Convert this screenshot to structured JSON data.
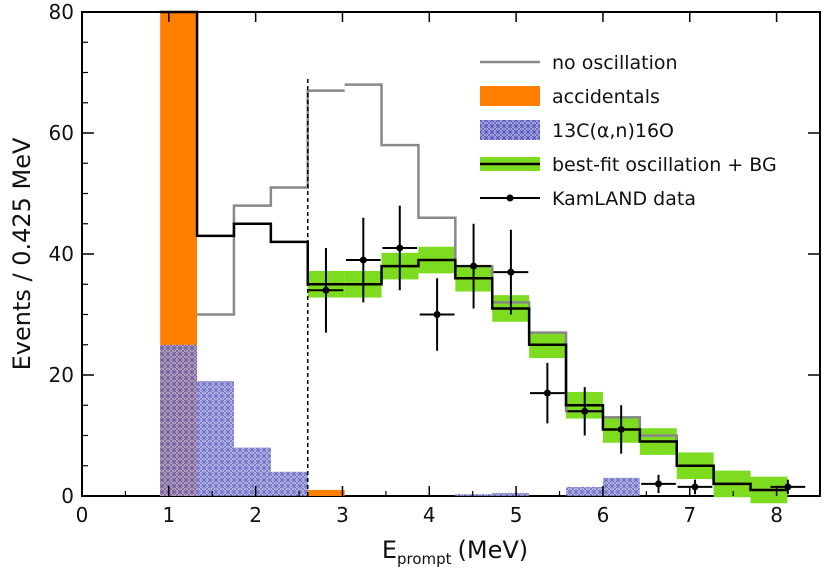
{
  "chart_data": {
    "type": "histogram",
    "xlabel": "E",
    "xlabel_sub": "prompt",
    "xlabel_unit": "(MeV)",
    "ylabel": "Events / 0.425 MeV",
    "xlim": [
      0,
      8.5
    ],
    "ylim": [
      0,
      80
    ],
    "xticks": [
      "0",
      "1",
      "2",
      "3",
      "4",
      "5",
      "6",
      "7",
      "8"
    ],
    "yticks": [
      "0",
      "20",
      "40",
      "60",
      "80"
    ],
    "bin_width": 0.425,
    "threshold_line": 2.6,
    "bin_edges": [
      0.9,
      1.325,
      1.75,
      2.175,
      2.6,
      3.025,
      3.45,
      3.875,
      4.3,
      4.725,
      5.15,
      5.575,
      6.0,
      6.425,
      6.85,
      7.275,
      7.7,
      8.125
    ],
    "series": [
      {
        "name": "no oscillation",
        "style": "step",
        "color": "#888888",
        "values": [
          80,
          30,
          48,
          51,
          67,
          68,
          58,
          46,
          38,
          32,
          27,
          14,
          13,
          10,
          5,
          2,
          1
        ]
      },
      {
        "name": "accidentals",
        "style": "filled",
        "color": "#ff7f00",
        "values": [
          80,
          0,
          0,
          0,
          1,
          0,
          0,
          0,
          0,
          0,
          0,
          0,
          0,
          0,
          0,
          0,
          0
        ]
      },
      {
        "name": "13C(α,n)16O",
        "style": "hatched",
        "color": "#3c3ca8",
        "values": [
          25,
          19,
          8,
          4,
          0,
          0,
          0,
          0,
          0.3,
          0.5,
          0,
          1.5,
          3,
          0,
          0,
          0,
          0
        ]
      },
      {
        "name": "best-fit oscillation + BG",
        "style": "band-step",
        "color": "#000000",
        "band_color": "#7ddc1f",
        "values": [
          80,
          43,
          45,
          42,
          35,
          35,
          38,
          39,
          36,
          31,
          25,
          15,
          11,
          9,
          5,
          2,
          1
        ]
      },
      {
        "name": "KamLAND data",
        "style": "points",
        "color": "#000000",
        "points": [
          {
            "x": 2.81,
            "y": 34,
            "err": 7
          },
          {
            "x": 3.24,
            "y": 39,
            "err": 7
          },
          {
            "x": 3.66,
            "y": 41,
            "err": 7
          },
          {
            "x": 4.09,
            "y": 30,
            "err": 6
          },
          {
            "x": 4.51,
            "y": 38,
            "err": 7
          },
          {
            "x": 4.94,
            "y": 37,
            "err": 7
          },
          {
            "x": 5.36,
            "y": 17,
            "err": 5
          },
          {
            "x": 5.79,
            "y": 14,
            "err": 4
          },
          {
            "x": 6.21,
            "y": 11,
            "err": 4
          },
          {
            "x": 6.64,
            "y": 2,
            "err": 1.5
          },
          {
            "x": 7.06,
            "y": 1.5,
            "err": 1.2
          },
          {
            "x": 8.13,
            "y": 1.5,
            "err": 1.2
          }
        ]
      }
    ],
    "legend": {
      "placement": "top-right",
      "entries": [
        {
          "label": "no oscillation",
          "kind": "line",
          "color": "#888888"
        },
        {
          "label": "accidentals",
          "kind": "fill",
          "color": "#ff7f00"
        },
        {
          "label": "13C(α,n)16O",
          "kind": "hatch",
          "color": "#3c3ca8"
        },
        {
          "label": "best-fit oscillation + BG",
          "kind": "band",
          "color": "#000000",
          "band_color": "#7ddc1f"
        },
        {
          "label": "KamLAND data",
          "kind": "point",
          "color": "#000000"
        }
      ]
    }
  }
}
